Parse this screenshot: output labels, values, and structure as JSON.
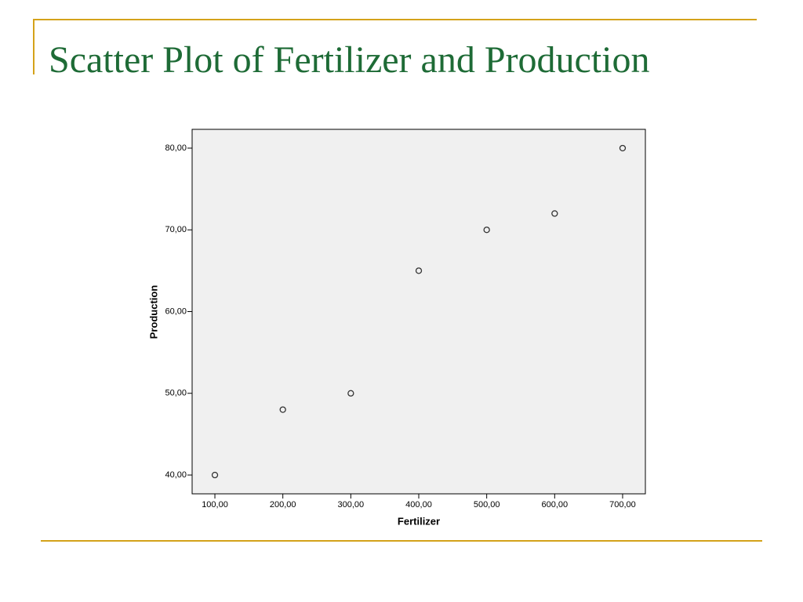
{
  "chart_data": {
    "type": "scatter",
    "title": "Scatter Plot of Fertilizer and Production",
    "x_label": "Fertilizer",
    "y_label": "Production",
    "x": [
      100,
      200,
      300,
      400,
      500,
      600,
      700
    ],
    "values": [
      40,
      48,
      50,
      65,
      70,
      72,
      80
    ],
    "color": "#333333",
    "xlim": [
      66.5,
      733.5
    ],
    "ylim": [
      37.7,
      82.3
    ],
    "xticks": [
      {
        "value": 100,
        "label": "100,00"
      },
      {
        "value": 200,
        "label": "200,00"
      },
      {
        "value": 300,
        "label": "300,00"
      },
      {
        "value": 400,
        "label": "400,00"
      },
      {
        "value": 500,
        "label": "500,00"
      },
      {
        "value": 600,
        "label": "600,00"
      },
      {
        "value": 700,
        "label": "700,00"
      }
    ],
    "yticks": [
      {
        "value": 40,
        "label": "40,00"
      },
      {
        "value": 50,
        "label": "50,00"
      },
      {
        "value": 60,
        "label": "60,00"
      },
      {
        "value": 70,
        "label": "70,00"
      },
      {
        "value": 80,
        "label": "80,00"
      }
    ]
  }
}
